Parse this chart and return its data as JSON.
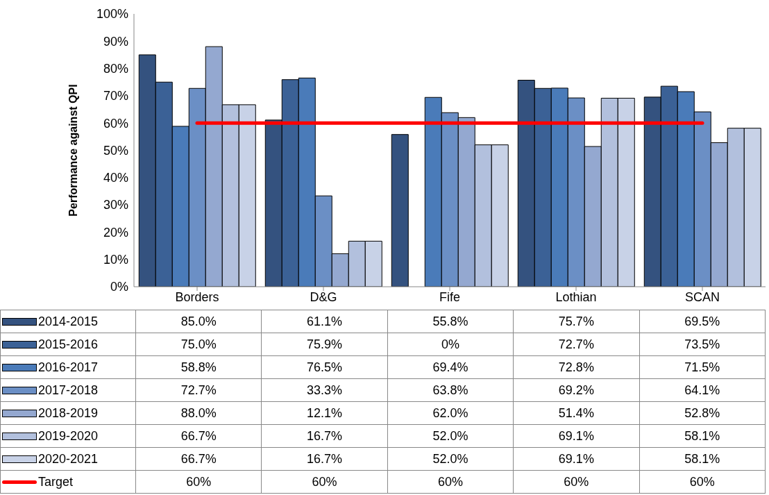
{
  "chart_data": {
    "type": "bar",
    "ylabel": "Performance against QPI",
    "categories": [
      "Borders",
      "D&G",
      "Fife",
      "Lothian",
      "SCAN"
    ],
    "ylim": [
      0,
      100
    ],
    "yticks": [
      {
        "value": 0,
        "label": "0%"
      },
      {
        "value": 10,
        "label": "10%"
      },
      {
        "value": 20,
        "label": "20%"
      },
      {
        "value": 30,
        "label": "30%"
      },
      {
        "value": 40,
        "label": "40%"
      },
      {
        "value": 50,
        "label": "50%"
      },
      {
        "value": 60,
        "label": "60%"
      },
      {
        "value": 70,
        "label": "70%"
      },
      {
        "value": 80,
        "label": "80%"
      },
      {
        "value": 90,
        "label": "90%"
      },
      {
        "value": 100,
        "label": "100%"
      }
    ],
    "grid": false,
    "legend": "bottom left",
    "series": [
      {
        "name": "2014-2015",
        "color": "#34527f",
        "values": [
          85.0,
          61.1,
          55.8,
          75.7,
          69.5
        ],
        "value_labels": [
          "85.0%",
          "61.1%",
          "55.8%",
          "75.7%",
          "69.5%"
        ]
      },
      {
        "name": "2015-2016",
        "color": "#3b6196",
        "values": [
          75.0,
          75.9,
          0,
          72.7,
          73.5
        ],
        "value_labels": [
          "75.0%",
          "75.9%",
          "0%",
          "72.7%",
          "73.5%"
        ]
      },
      {
        "name": "2016-2017",
        "color": "#4a7bb9",
        "values": [
          58.8,
          76.5,
          69.4,
          72.8,
          71.5
        ],
        "value_labels": [
          "58.8%",
          "76.5%",
          "69.4%",
          "72.8%",
          "71.5%"
        ]
      },
      {
        "name": "2017-2018",
        "color": "#6b8fc5",
        "values": [
          72.7,
          33.3,
          63.8,
          69.2,
          64.1
        ],
        "value_labels": [
          "72.7%",
          "33.3%",
          "63.8%",
          "69.2%",
          "64.1%"
        ]
      },
      {
        "name": "2018-2019",
        "color": "#94a8d0",
        "values": [
          88.0,
          12.1,
          62.0,
          51.4,
          52.8
        ],
        "value_labels": [
          "88.0%",
          "12.1%",
          "62.0%",
          "51.4%",
          "52.8%"
        ]
      },
      {
        "name": "2019-2020",
        "color": "#b2c0dd",
        "values": [
          66.7,
          16.7,
          52.0,
          69.1,
          58.1
        ],
        "value_labels": [
          "66.7%",
          "16.7%",
          "52.0%",
          "69.1%",
          "58.1%"
        ]
      },
      {
        "name": "2020-2021",
        "color": "#c8d2e7",
        "values": [
          66.7,
          16.7,
          52.0,
          69.1,
          58.1
        ],
        "value_labels": [
          "66.7%",
          "16.7%",
          "52.0%",
          "69.1%",
          "58.1%"
        ]
      },
      {
        "name": "Target",
        "type": "line",
        "color": "#ff0000",
        "values": [
          60,
          60,
          60,
          60,
          60
        ],
        "value_labels": [
          "60%",
          "60%",
          "60%",
          "60%",
          "60%"
        ]
      }
    ]
  }
}
